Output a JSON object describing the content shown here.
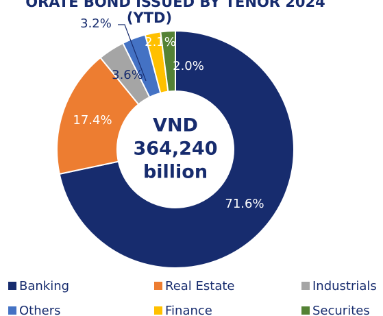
{
  "chart_data": {
    "type": "donut",
    "title": [
      "ORATE BOND ISSUED BY TENOR 2024",
      "(YTD)"
    ],
    "center_text": [
      "VND",
      "364,240",
      "billion"
    ],
    "categories": [
      "Banking",
      "Real Estate",
      "Industrials",
      "Others",
      "Finance",
      "Securites"
    ],
    "values": [
      71.6,
      17.4,
      3.6,
      3.2,
      2.1,
      2.0
    ],
    "value_labels": [
      "71.6%",
      "17.4%",
      "3.6%",
      "3.2%",
      "2.1%",
      "2.0%"
    ],
    "colors": [
      "#172c6e",
      "#ed7d31",
      "#a5a5a5",
      "#4472c4",
      "#ffc000",
      "#548235"
    ],
    "legend": "bottom"
  }
}
